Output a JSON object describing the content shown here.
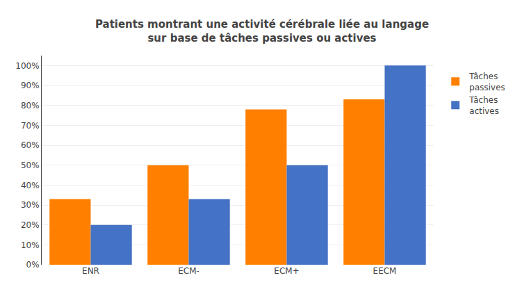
{
  "chart_data": {
    "type": "bar",
    "title": "Patients montrant une activité cérébrale liée au langage\nsur base de tâches passives ou actives",
    "categories": [
      "ENR",
      "ECM-",
      "ECM+",
      "EECM"
    ],
    "series": [
      {
        "name": "Tâches\npassives",
        "color": "#FF8000",
        "values": [
          0.33,
          0.5,
          0.78,
          0.83
        ]
      },
      {
        "name": "Tâches\nactives",
        "color": "#4472C4",
        "values": [
          0.2,
          0.33,
          0.5,
          1.0
        ]
      }
    ],
    "ylim": [
      0,
      1.05
    ],
    "yticks": [
      {
        "value": 0,
        "label": "0%"
      },
      {
        "value": 0.1,
        "label": "10%"
      },
      {
        "value": 0.2,
        "label": "20%"
      },
      {
        "value": 0.3,
        "label": "30%"
      },
      {
        "value": 0.4,
        "label": "40%"
      },
      {
        "value": 0.5,
        "label": "50%"
      },
      {
        "value": 0.6,
        "label": "60%"
      },
      {
        "value": 0.7,
        "label": "70%"
      },
      {
        "value": 0.8,
        "label": "80%"
      },
      {
        "value": 0.9,
        "label": "90%"
      },
      {
        "value": 1.0,
        "label": "100%"
      }
    ],
    "grid": true,
    "legend": "right"
  }
}
